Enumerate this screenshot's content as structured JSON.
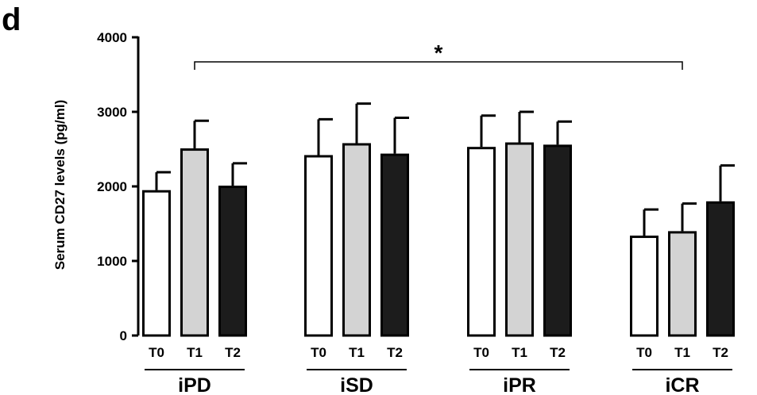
{
  "panel_label": "d",
  "chart_data": {
    "type": "bar",
    "ylabel": "Serum CD27 levels (pg/ml)",
    "ylim": [
      0,
      4000
    ],
    "yticks": [
      0,
      1000,
      2000,
      3000,
      4000
    ],
    "groups": [
      {
        "name": "iPD",
        "categories": [
          "T0",
          "T1",
          "T2"
        ],
        "values": [
          1950,
          2510,
          2010
        ],
        "errors": [
          240,
          370,
          300
        ]
      },
      {
        "name": "iSD",
        "categories": [
          "T0",
          "T1",
          "T2"
        ],
        "values": [
          2420,
          2580,
          2440
        ],
        "errors": [
          480,
          530,
          480
        ]
      },
      {
        "name": "iPR",
        "categories": [
          "T0",
          "T1",
          "T2"
        ],
        "values": [
          2530,
          2590,
          2560
        ],
        "errors": [
          420,
          410,
          310
        ]
      },
      {
        "name": "iCR",
        "categories": [
          "T0",
          "T1",
          "T2"
        ],
        "values": [
          1340,
          1400,
          1800
        ],
        "errors": [
          350,
          370,
          480
        ]
      }
    ],
    "bar_fills": {
      "T0": "#ffffff",
      "T1": "#d3d3d3",
      "T2": "#1c1c1c"
    },
    "significance": {
      "from_group": "iPD",
      "from_category": "T1",
      "to_group": "iCR",
      "to_category": "T1",
      "label": "*"
    },
    "grid": false,
    "legend": "none"
  }
}
